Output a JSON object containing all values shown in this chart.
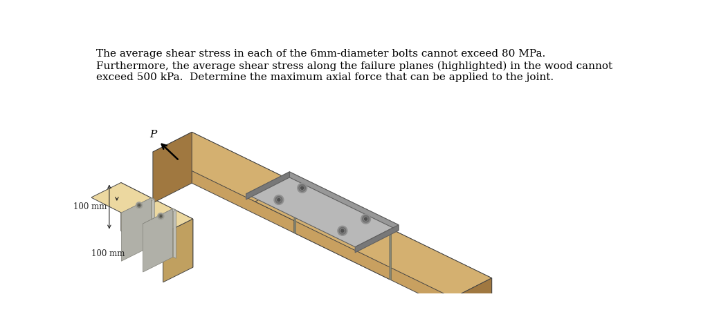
{
  "text_lines": [
    "The average shear stress in each of the 6mm-diameter bolts cannot exceed 80 MPa.",
    "Furthermore, the average shear stress along the failure planes (highlighted) in the wood cannot",
    "exceed 500 kPa.  Determine the maximum axial force that can be applied to the joint."
  ],
  "text_fontsize": 11.0,
  "wood_front": "#C8A060",
  "wood_top": "#D4B070",
  "wood_right": "#A07840",
  "wood_front_light": "#D8B878",
  "wood_top_light": "#E8CC90",
  "steel_top": "#B8B8B8",
  "steel_front": "#989898",
  "steel_right": "#787878",
  "steel_edge": "#606060",
  "bolt_outer": "#909090",
  "bolt_mid": "#707070",
  "bolt_inner": "#505050",
  "background": "#FFFFFF",
  "dim_color": "#222222"
}
